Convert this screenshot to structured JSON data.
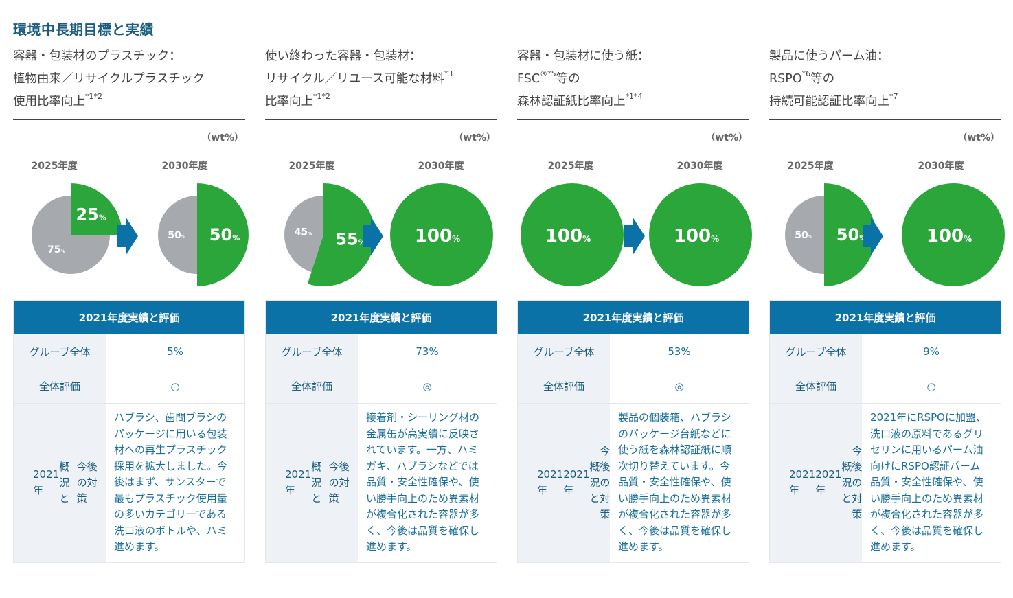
{
  "title": "環境中長期目標と実績",
  "unit": "（wt%）",
  "table_header": "2021年度実績と評価",
  "row_labels": {
    "group": "グループ全体",
    "evaluation": "全体評価"
  },
  "colors": {
    "accent_green": "#2aa63a",
    "grey": "#a6a9ae",
    "blue": "#0a72a6",
    "heading_blue": "#1a5b7e"
  },
  "columns": [
    {
      "heading": {
        "line1": "容器・包装材のプラスチック：",
        "line2": "植物由来／リサイクルプラスチック",
        "line3": "使用比率向上",
        "note": "*1*2"
      },
      "labels": {
        "y2025": "2025年度",
        "y2030": "2030年度",
        "p2025_main": "25",
        "p2025_rest": "75",
        "p2030_main": "50",
        "p2030_rest": "50",
        "pct": "%"
      },
      "group_value": "5%",
      "evaluation": "○",
      "overview_label": [
        "2021年",
        "概況と",
        "今後の対策"
      ],
      "overview_text": [
        "ハブラシ、歯間ブラシの",
        "パッケージに用いる包装",
        "材への再生プラスチック",
        "採用を拡大しました。今",
        "後はまず、サンスターで",
        "最もプラスチック使用量",
        "の多いカテゴリーである",
        "洗口液のボトルや、ハミ",
        "進めます。"
      ]
    },
    {
      "heading": {
        "line1": "使い終わった容器・包装材：",
        "line2": "リサイクル／リユース可能な材料",
        "note2": "*3",
        "line3": "比率向上",
        "note": "*1*2"
      },
      "labels": {
        "y2025": "2025年度",
        "y2030": "2030年度",
        "p2025_main": "55",
        "p2025_rest": "45",
        "p2030_main": "100",
        "pct": "%"
      },
      "group_value": "73%",
      "evaluation": "◎",
      "overview_label": [
        "2021年",
        "概況と",
        "今後の対策"
      ],
      "overview_text": [
        "接着剤・シーリング材の",
        "金属缶が高実績に反映さ",
        "れています。一方、ハミ",
        "ガキ、ハブラシなどでは",
        "品質・安全性確保や、使",
        "い勝手向上のため異素材",
        "が複合化された容器が多",
        "く、今後は品質を確保し",
        "進めます。"
      ]
    },
    {
      "heading": {
        "line1": "容器・包装材に使う紙：",
        "line2a": "FSC",
        "reg": "®",
        "note2": "*5",
        "line2b": "等の",
        "line3": "森林認証紙比率向上",
        "note": "*1*4"
      },
      "labels": {
        "y2025": "2025年度",
        "y2030": "2030年度",
        "p2025_main": "100",
        "p2030_main": "100",
        "pct": "%"
      },
      "group_value": "53%",
      "evaluation": "◎",
      "overview_label": [
        "2021年",
        "2021年",
        "概況と",
        "今後の対策"
      ],
      "overview_text": [
        "製品の個装箱、ハブラシ",
        "のパッケージ台紙などに",
        "使う紙を森林認証紙に順",
        "次切り替えています。今",
        "品質・安全性確保や、使",
        "い勝手向上のため異素材",
        "が複合化された容器が多",
        "く、今後は品質を確保し",
        "進めます。"
      ]
    },
    {
      "heading": {
        "line1": "製品に使うパーム油：",
        "line2a": "RSPO",
        "note2": "*6",
        "line2b": "等の",
        "line3": "持続可能認証比率向上",
        "note": "*7"
      },
      "labels": {
        "y2025": "2025年度",
        "y2030": "2030年度",
        "p2025_main": "50",
        "p2025_rest": "50",
        "p2030_main": "100",
        "pct": "%"
      },
      "group_value": "9%",
      "evaluation": "○",
      "overview_label": [
        "2021年",
        "2021年",
        "概況と",
        "今後の対策"
      ],
      "overview_text": [
        "2021年にRSPOに加盟、",
        "洗口液の原料であるグリ",
        "セリンに用いるパーム油",
        "向けにRSPO認証パーム",
        "品質・安全性確保や、使",
        "い勝手向上のため異素材",
        "が複合化された容器が多",
        "く、今後は品質を確保し",
        "進めます。"
      ]
    }
  ],
  "chart_data": [
    {
      "type": "pie",
      "title": "容器・包装材のプラスチック：植物由来／リサイクルプラスチック使用比率向上",
      "categories": [
        "2025年度",
        "2030年度"
      ],
      "series": [
        {
          "name": "2025年度",
          "values": [
            25,
            75
          ]
        },
        {
          "name": "2030年度",
          "values": [
            50,
            50
          ]
        }
      ],
      "unit": "wt%",
      "actual_2021": 5
    },
    {
      "type": "pie",
      "title": "使い終わった容器・包装材：リサイクル／リユース可能な材料比率向上",
      "categories": [
        "2025年度",
        "2030年度"
      ],
      "series": [
        {
          "name": "2025年度",
          "values": [
            55,
            45
          ]
        },
        {
          "name": "2030年度",
          "values": [
            100,
            0
          ]
        }
      ],
      "unit": "wt%",
      "actual_2021": 73
    },
    {
      "type": "pie",
      "title": "容器・包装材に使う紙：FSC等の森林認証紙比率向上",
      "categories": [
        "2025年度",
        "2030年度"
      ],
      "series": [
        {
          "name": "2025年度",
          "values": [
            100,
            0
          ]
        },
        {
          "name": "2030年度",
          "values": [
            100,
            0
          ]
        }
      ],
      "unit": "wt%",
      "actual_2021": 53
    },
    {
      "type": "pie",
      "title": "製品に使うパーム油：RSPO等の持続可能認証比率向上",
      "categories": [
        "2025年度",
        "2030年度"
      ],
      "series": [
        {
          "name": "2025年度",
          "values": [
            50,
            50
          ]
        },
        {
          "name": "2030年度",
          "values": [
            100,
            0
          ]
        }
      ],
      "unit": "wt%",
      "actual_2021": 9
    }
  ]
}
